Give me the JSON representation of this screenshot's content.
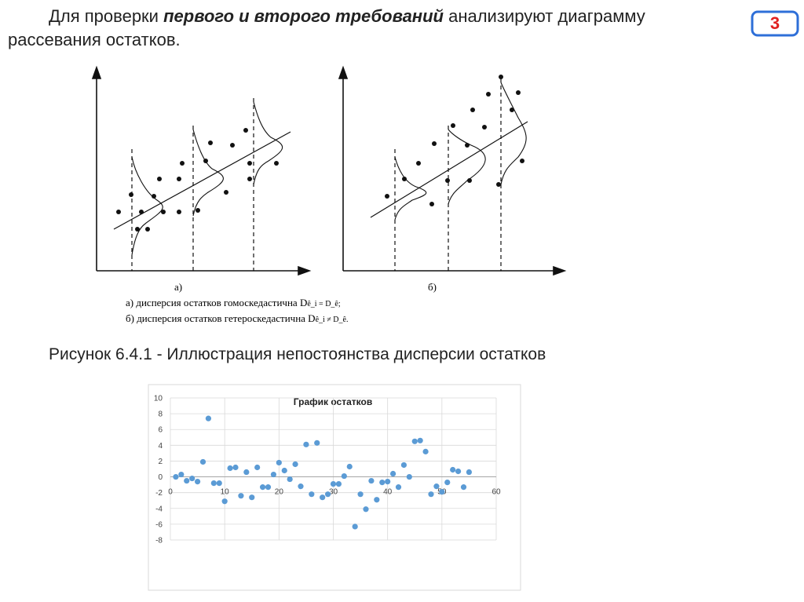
{
  "header": {
    "text_before": "Для проверки ",
    "text_emphasis": "первого и второго требований",
    "text_after": " анализируют диаграмму",
    "text_line2": "рассевания остатков.",
    "badge": "3"
  },
  "figure": {
    "label_a": "а)",
    "label_b": "б)",
    "legend_a": "а) дисперсия остатков гомоскедастична D",
    "legend_a_math": "ê_i = D_ê;",
    "legend_b": "б) дисперсия остатков гетероскедастична D",
    "legend_b_math": "ê_i ≠ D_ê.",
    "caption": "Рисунок 6.4.1 - Иллюстрация непостоянства дисперсии остатков"
  },
  "chart_data": {
    "type": "scatter",
    "title": "График остатков",
    "color": "#5b9bd5",
    "grid": true,
    "x": [
      1,
      2,
      3,
      4,
      5,
      6,
      7,
      8,
      9,
      10,
      11,
      12,
      13,
      14,
      15,
      16,
      17,
      18,
      19,
      20,
      21,
      22,
      23,
      24,
      25,
      26,
      27,
      28,
      29,
      30,
      31,
      32,
      33,
      34,
      35,
      36,
      37,
      38,
      39,
      40,
      41,
      42,
      43,
      44,
      45,
      46,
      47,
      48,
      49,
      50,
      51,
      52,
      53,
      54,
      55
    ],
    "values": [
      0,
      0.3,
      -0.5,
      -0.2,
      -0.6,
      1.9,
      7.4,
      -0.8,
      -0.8,
      -3.1,
      1.1,
      1.2,
      -2.4,
      0.6,
      -2.6,
      1.2,
      -1.3,
      -1.3,
      0.3,
      1.8,
      0.8,
      -0.3,
      1.6,
      -1.2,
      4.1,
      -2.2,
      4.3,
      -2.6,
      -2.2,
      -0.9,
      -0.9,
      0.1,
      1.3,
      -6.3,
      -2.2,
      -4.1,
      -0.5,
      -2.9,
      -0.7,
      -0.6,
      0.4,
      -1.3,
      1.5,
      0,
      4.5,
      4.6,
      3.2,
      -2.2,
      -1.2,
      -1.9,
      -0.7,
      0.9,
      0.7,
      -1.3,
      0.6
    ],
    "xlim": [
      0,
      60
    ],
    "xticks": [
      0,
      10,
      20,
      30,
      40,
      50,
      60
    ],
    "ylim": [
      -8,
      10
    ],
    "yticks": [
      -8,
      -6,
      -4,
      -2,
      0,
      2,
      4,
      6,
      8,
      10
    ]
  }
}
